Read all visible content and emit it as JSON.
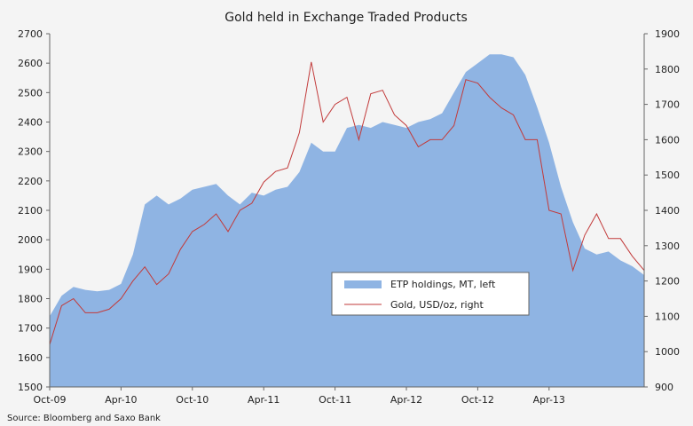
{
  "chart_data": {
    "type": "area",
    "title": "Gold held in Exchange Traded Products",
    "source": "Source: Bloomberg and Saxo Bank",
    "x_tick_labels": [
      "Oct-09",
      "Apr-10",
      "Oct-10",
      "Apr-11",
      "Oct-11",
      "Apr-12",
      "Oct-12",
      "Apr-13"
    ],
    "x_range": [
      "Oct-09",
      "Dec-13"
    ],
    "y_left": {
      "ticks": [
        1500,
        1600,
        1700,
        1800,
        1900,
        2000,
        2100,
        2200,
        2300,
        2400,
        2500,
        2600,
        2700
      ],
      "range": [
        1500,
        2700
      ]
    },
    "y_right": {
      "ticks": [
        900,
        1000,
        1100,
        1200,
        1300,
        1400,
        1500,
        1600,
        1700,
        1800,
        1900
      ],
      "range": [
        900,
        1900
      ]
    },
    "grid": false,
    "legend_position": "center-right",
    "series": [
      {
        "name": "ETP holdings, MT, left",
        "kind": "area",
        "axis": "left",
        "color": "#8fb4e3",
        "points": [
          [
            "2009-10-01",
            1740
          ],
          [
            "2009-11-01",
            1810
          ],
          [
            "2009-12-01",
            1840
          ],
          [
            "2010-01-01",
            1830
          ],
          [
            "2010-02-01",
            1825
          ],
          [
            "2010-03-01",
            1830
          ],
          [
            "2010-04-01",
            1850
          ],
          [
            "2010-05-01",
            1950
          ],
          [
            "2010-06-01",
            2120
          ],
          [
            "2010-07-01",
            2150
          ],
          [
            "2010-08-01",
            2120
          ],
          [
            "2010-09-01",
            2140
          ],
          [
            "2010-10-01",
            2170
          ],
          [
            "2010-11-01",
            2180
          ],
          [
            "2010-12-01",
            2190
          ],
          [
            "2011-01-01",
            2150
          ],
          [
            "2011-02-01",
            2120
          ],
          [
            "2011-03-01",
            2160
          ],
          [
            "2011-04-01",
            2150
          ],
          [
            "2011-05-01",
            2170
          ],
          [
            "2011-06-01",
            2180
          ],
          [
            "2011-07-01",
            2230
          ],
          [
            "2011-08-01",
            2330
          ],
          [
            "2011-09-01",
            2300
          ],
          [
            "2011-10-01",
            2300
          ],
          [
            "2011-11-01",
            2380
          ],
          [
            "2011-12-01",
            2390
          ],
          [
            "2012-01-01",
            2380
          ],
          [
            "2012-02-01",
            2400
          ],
          [
            "2012-03-01",
            2390
          ],
          [
            "2012-04-01",
            2380
          ],
          [
            "2012-05-01",
            2400
          ],
          [
            "2012-06-01",
            2410
          ],
          [
            "2012-07-01",
            2430
          ],
          [
            "2012-08-01",
            2500
          ],
          [
            "2012-09-01",
            2570
          ],
          [
            "2012-10-01",
            2600
          ],
          [
            "2012-11-01",
            2630
          ],
          [
            "2012-12-01",
            2630
          ],
          [
            "2013-01-01",
            2620
          ],
          [
            "2013-02-01",
            2560
          ],
          [
            "2013-03-01",
            2450
          ],
          [
            "2013-04-01",
            2330
          ],
          [
            "2013-05-01",
            2180
          ],
          [
            "2013-06-01",
            2060
          ],
          [
            "2013-07-01",
            1970
          ],
          [
            "2013-08-01",
            1950
          ],
          [
            "2013-09-01",
            1960
          ],
          [
            "2013-10-01",
            1930
          ],
          [
            "2013-11-01",
            1910
          ],
          [
            "2013-12-01",
            1880
          ]
        ]
      },
      {
        "name": "Gold, USD/oz, right",
        "kind": "line",
        "axis": "right",
        "color": "#c23a3a",
        "points": [
          [
            "2009-10-01",
            1020
          ],
          [
            "2009-11-01",
            1130
          ],
          [
            "2009-12-01",
            1150
          ],
          [
            "2010-01-01",
            1110
          ],
          [
            "2010-02-01",
            1110
          ],
          [
            "2010-03-01",
            1120
          ],
          [
            "2010-04-01",
            1150
          ],
          [
            "2010-05-01",
            1200
          ],
          [
            "2010-06-01",
            1240
          ],
          [
            "2010-07-01",
            1190
          ],
          [
            "2010-08-01",
            1220
          ],
          [
            "2010-09-01",
            1290
          ],
          [
            "2010-10-01",
            1340
          ],
          [
            "2010-11-01",
            1360
          ],
          [
            "2010-12-01",
            1390
          ],
          [
            "2011-01-01",
            1340
          ],
          [
            "2011-02-01",
            1400
          ],
          [
            "2011-03-01",
            1420
          ],
          [
            "2011-04-01",
            1480
          ],
          [
            "2011-05-01",
            1510
          ],
          [
            "2011-06-01",
            1520
          ],
          [
            "2011-07-01",
            1620
          ],
          [
            "2011-08-01",
            1820
          ],
          [
            "2011-09-01",
            1650
          ],
          [
            "2011-10-01",
            1700
          ],
          [
            "2011-11-01",
            1720
          ],
          [
            "2011-12-01",
            1600
          ],
          [
            "2012-01-01",
            1730
          ],
          [
            "2012-02-01",
            1740
          ],
          [
            "2012-03-01",
            1670
          ],
          [
            "2012-04-01",
            1640
          ],
          [
            "2012-05-01",
            1580
          ],
          [
            "2012-06-01",
            1600
          ],
          [
            "2012-07-01",
            1600
          ],
          [
            "2012-08-01",
            1640
          ],
          [
            "2012-09-01",
            1770
          ],
          [
            "2012-10-01",
            1760
          ],
          [
            "2012-11-01",
            1720
          ],
          [
            "2012-12-01",
            1690
          ],
          [
            "2013-01-01",
            1670
          ],
          [
            "2013-02-01",
            1600
          ],
          [
            "2013-03-01",
            1600
          ],
          [
            "2013-04-01",
            1400
          ],
          [
            "2013-05-01",
            1390
          ],
          [
            "2013-06-01",
            1230
          ],
          [
            "2013-07-01",
            1330
          ],
          [
            "2013-08-01",
            1390
          ],
          [
            "2013-09-01",
            1320
          ],
          [
            "2013-10-01",
            1320
          ],
          [
            "2013-11-01",
            1270
          ],
          [
            "2013-12-01",
            1230
          ]
        ]
      }
    ]
  }
}
